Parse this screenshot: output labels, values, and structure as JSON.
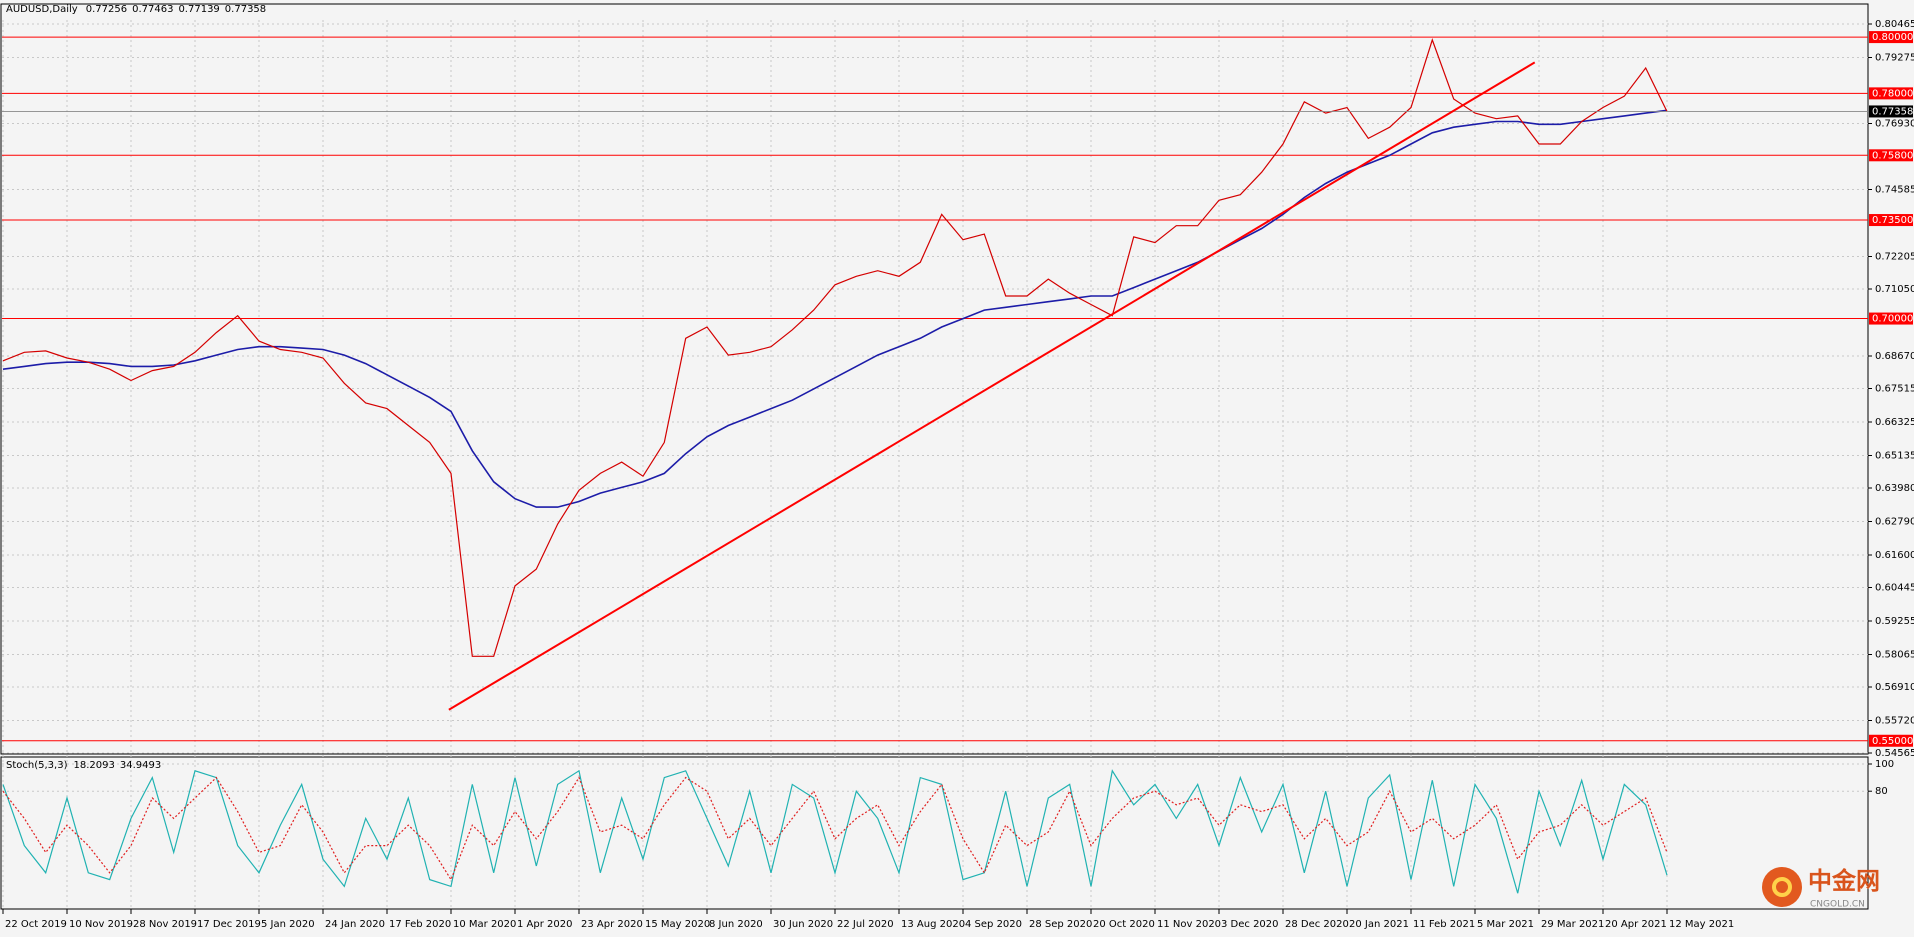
{
  "chart_data": [
    {
      "type": "line",
      "symbol": "AUDUSD,Daily",
      "last_bar": {
        "open": 0.77256,
        "high": 0.77463,
        "low": 0.77139
      },
      "categories": [
        "22 Oct 2019",
        null,
        null,
        "10 Nov 2019",
        null,
        null,
        "28 Nov 2019",
        null,
        null,
        "17 Dec 2019",
        null,
        null,
        "5 Jan 2020",
        null,
        null,
        "24 Jan 2020",
        null,
        null,
        "17 Feb 2020",
        null,
        null,
        "10 Mar 2020",
        null,
        null,
        "1 Apr 2020",
        null,
        null,
        "23 Apr 2020",
        null,
        null,
        "15 May 2020",
        null,
        null,
        "8 Jun 2020",
        null,
        null,
        "30 Jun 2020",
        null,
        null,
        "22 Jul 2020",
        null,
        null,
        "13 Aug 2020",
        null,
        null,
        "4 Sep 2020",
        null,
        null,
        "28 Sep 2020",
        null,
        null,
        "20 Oct 2020",
        null,
        null,
        "11 Nov 2020",
        null,
        null,
        "3 Dec 2020",
        null,
        null,
        "28 Dec 2020",
        null,
        null,
        "20 Jan 2021",
        null,
        null,
        "11 Feb 2021",
        null,
        null,
        "5 Mar 2021",
        null,
        null,
        "29 Mar 2021",
        null,
        null,
        "20 Apr 2021",
        null,
        null,
        "12 May 2021"
      ],
      "values": [
        0.685,
        0.688,
        0.6885,
        0.686,
        0.6845,
        0.682,
        0.678,
        0.6815,
        0.683,
        0.688,
        0.695,
        0.701,
        0.692,
        0.689,
        0.688,
        0.686,
        0.677,
        0.67,
        0.668,
        0.662,
        0.656,
        0.645,
        0.58,
        0.58,
        0.605,
        0.611,
        0.627,
        0.639,
        0.645,
        0.649,
        0.644,
        0.656,
        0.693,
        0.697,
        0.687,
        0.688,
        0.69,
        0.696,
        0.703,
        0.712,
        0.715,
        0.717,
        0.715,
        0.72,
        0.737,
        0.728,
        0.73,
        0.708,
        0.708,
        0.714,
        0.709,
        0.705,
        0.701,
        0.729,
        0.727,
        0.733,
        0.733,
        0.742,
        0.744,
        0.752,
        0.762,
        0.777,
        0.773,
        0.775,
        0.764,
        0.768,
        0.775,
        0.799,
        0.778,
        0.773,
        0.771,
        0.772,
        0.762,
        0.762,
        0.77,
        0.775,
        0.779,
        0.789,
        0.77358
      ],
      "color": "#d40000",
      "moving_average": {
        "color": "#1c1ca8",
        "values": [
          0.682,
          0.683,
          0.684,
          0.6845,
          0.6845,
          0.684,
          0.683,
          0.683,
          0.6835,
          0.685,
          0.687,
          0.689,
          0.69,
          0.69,
          0.6895,
          0.689,
          0.687,
          0.684,
          0.68,
          0.676,
          0.672,
          0.667,
          0.653,
          0.642,
          0.636,
          0.633,
          0.633,
          0.635,
          0.638,
          0.64,
          0.642,
          0.645,
          0.652,
          0.658,
          0.662,
          0.665,
          0.668,
          0.671,
          0.675,
          0.679,
          0.683,
          0.687,
          0.69,
          0.693,
          0.697,
          0.7,
          0.703,
          0.704,
          0.705,
          0.706,
          0.707,
          0.708,
          0.708,
          0.711,
          0.714,
          0.717,
          0.72,
          0.724,
          0.728,
          0.732,
          0.737,
          0.743,
          0.748,
          0.752,
          0.755,
          0.758,
          0.762,
          0.766,
          0.768,
          0.769,
          0.77,
          0.77,
          0.769,
          0.769,
          0.77,
          0.771,
          0.772,
          0.773,
          0.774
        ]
      },
      "levels": [
        {
          "value": 0.8,
          "label": "0.80000"
        },
        {
          "value": 0.78,
          "label": "0.78000"
        },
        {
          "value": 0.758,
          "label": "0.75800"
        },
        {
          "value": 0.735,
          "label": "0.73500"
        },
        {
          "value": 0.7,
          "label": "0.70000"
        },
        {
          "value": 0.55,
          "label": "0.55000"
        }
      ],
      "level_color": "#ff0000",
      "trendlines": [
        {
          "values": [
            0.561,
            0.791
          ]
        }
      ],
      "ylim": [
        0.54565,
        0.80465
      ],
      "yticks": [
        0.80465,
        0.79275,
        {
          "value": 0.7693,
          "label": "0.76930"
        },
        0.74585,
        0.72205,
        {
          "value": 0.7105,
          "label": "0.71050"
        },
        {
          "value": 0.6867,
          "label": "0.68670"
        },
        0.67515,
        0.66325,
        0.65135,
        {
          "value": 0.6398,
          "label": "0.63980"
        },
        {
          "value": 0.6279,
          "label": "0.62790"
        },
        {
          "value": 0.616,
          "label": "0.61600"
        },
        0.60445,
        0.59255,
        0.58065,
        {
          "value": 0.5691,
          "label": "0.56910"
        },
        {
          "value": 0.5572,
          "label": "0.55720"
        },
        0.54565
      ],
      "grid": true
    },
    {
      "type": "line",
      "indicator": "Stoch(5,3,3)",
      "series": [
        {
          "color": "#20b2b2",
          "values": [
            85,
            40,
            20,
            75,
            20,
            15,
            60,
            90,
            35,
            95,
            90,
            40,
            20,
            55,
            85,
            30,
            10,
            60,
            30,
            75,
            15,
            10,
            85,
            20,
            90,
            25,
            85,
            95,
            20,
            75,
            30,
            90,
            95,
            60,
            25,
            80,
            20,
            85,
            75,
            20,
            80,
            60,
            20,
            90,
            85,
            15,
            20,
            80,
            10,
            75,
            85,
            10,
            95,
            70,
            85,
            60,
            85,
            40,
            90,
            50,
            85,
            20,
            80,
            10,
            75,
            92,
            15,
            88,
            10,
            85,
            60,
            5,
            80,
            40,
            88,
            30,
            85,
            70,
            18.2093
          ]
        },
        {
          "color": "#e02020",
          "dashed": true,
          "values": [
            80,
            60,
            35,
            55,
            40,
            20,
            40,
            75,
            60,
            75,
            90,
            65,
            35,
            40,
            70,
            50,
            20,
            40,
            40,
            55,
            40,
            15,
            55,
            40,
            65,
            45,
            65,
            90,
            50,
            55,
            45,
            70,
            90,
            80,
            45,
            60,
            40,
            60,
            80,
            45,
            60,
            70,
            40,
            65,
            85,
            45,
            20,
            55,
            40,
            50,
            80,
            40,
            60,
            75,
            80,
            70,
            75,
            55,
            70,
            65,
            70,
            45,
            60,
            40,
            50,
            80,
            50,
            60,
            45,
            55,
            70,
            30,
            50,
            55,
            70,
            55,
            65,
            75,
            34.9493
          ]
        }
      ],
      "ylim": [
        0,
        100
      ],
      "yticks": [
        100,
        80
      ],
      "grid": true
    }
  ],
  "watermark": {
    "title": "中金网",
    "subtitle": "CNGOLD.CN"
  }
}
